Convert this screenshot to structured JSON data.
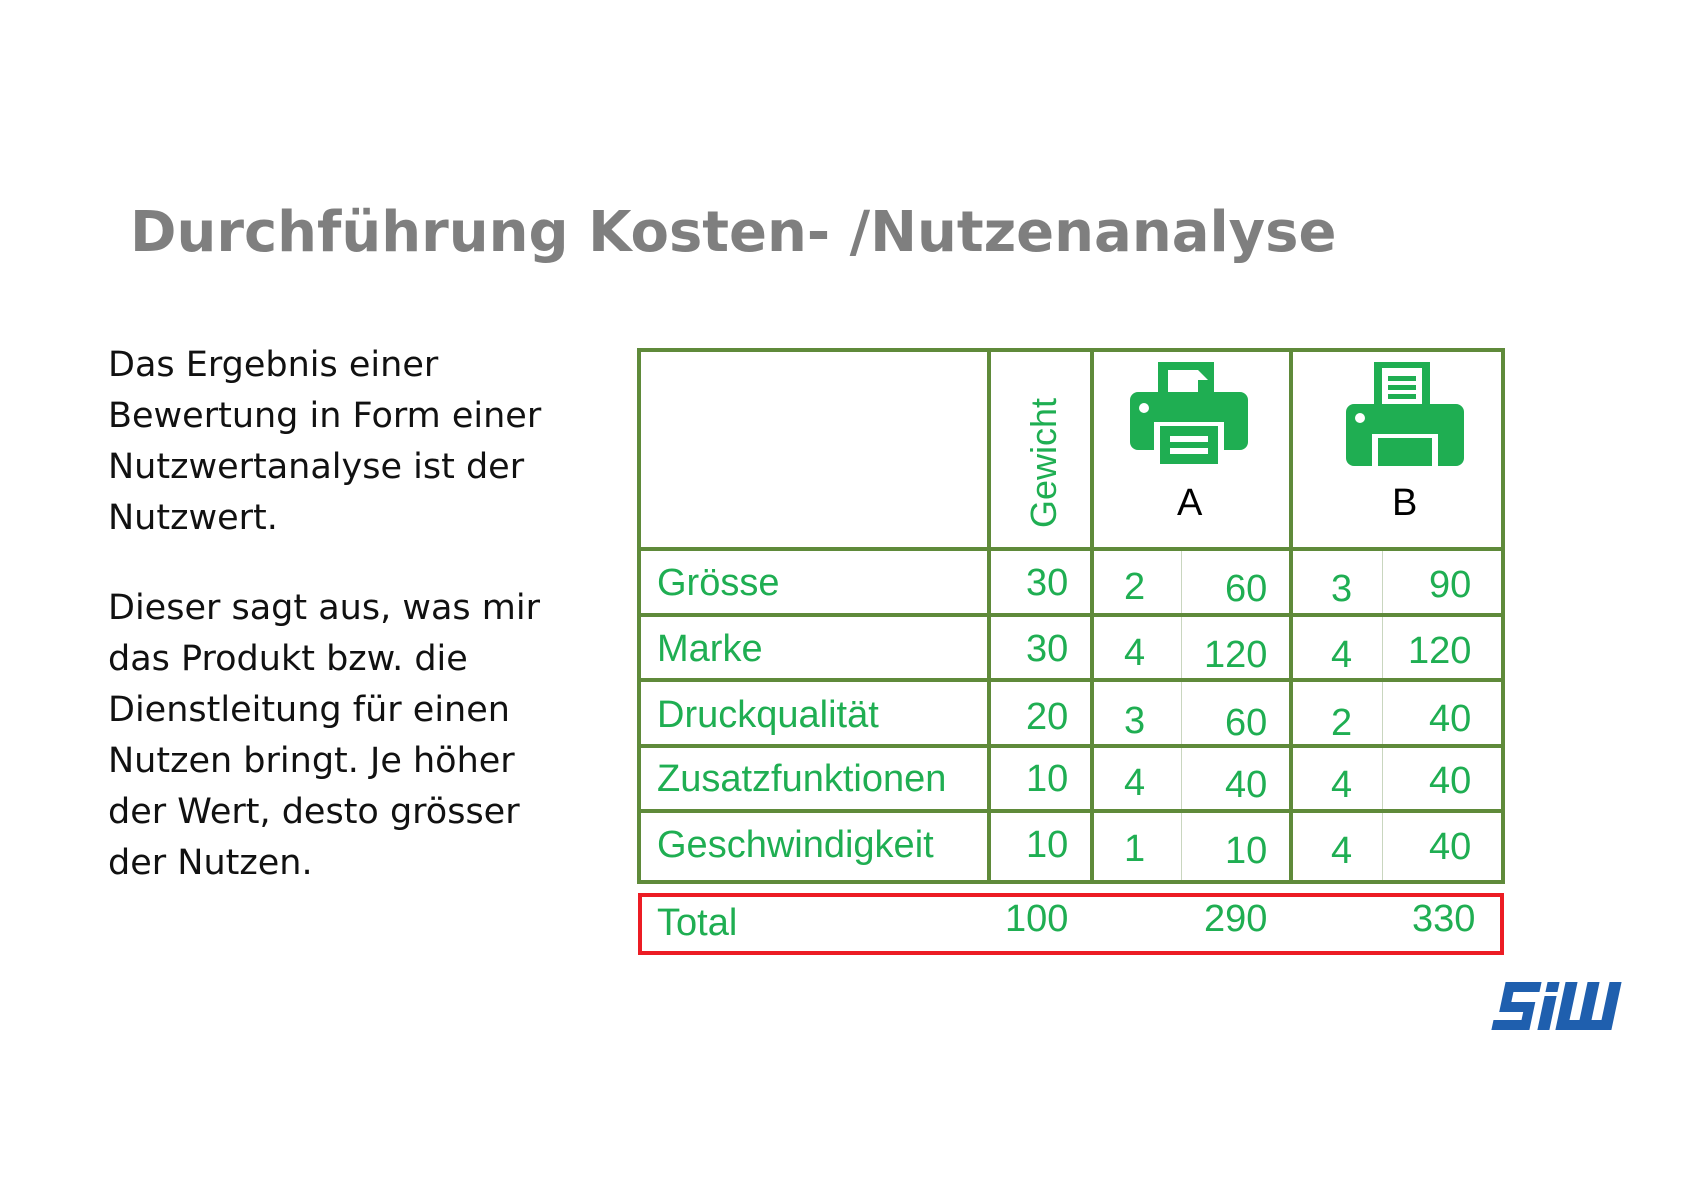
{
  "title": "Durchführung Kosten- /Nutzenanalyse",
  "left_text": {
    "paragraph1": [
      "Das Ergebnis einer",
      "Bewertung in Form einer",
      "Nutzwertanalyse ist der",
      "Nutzwert."
    ],
    "paragraph2": [
      "Dieser sagt aus, was mir",
      "das Produkt bzw. die",
      "Dienstleitung für einen",
      "Nutzen bringt. Je höher",
      "der Wert, desto grösser",
      "der Nutzen."
    ]
  },
  "table": {
    "weight_header": "Gewicht",
    "product_a_label": "A",
    "product_b_label": "B",
    "product_icon": "printer-icon",
    "rows": [
      {
        "criterion": "Grösse",
        "weight": "30",
        "a_score": "2",
        "a_value": "60",
        "b_score": "3",
        "b_value": "90"
      },
      {
        "criterion": "Marke",
        "weight": "30",
        "a_score": "4",
        "a_value": "120",
        "b_score": "4",
        "b_value": "120"
      },
      {
        "criterion": "Druckqualität",
        "weight": "20",
        "a_score": "3",
        "a_value": "60",
        "b_score": "2",
        "b_value": "40"
      },
      {
        "criterion": "Zusatzfunktionen",
        "weight": "10",
        "a_score": "4",
        "a_value": "40",
        "b_score": "4",
        "b_value": "40"
      },
      {
        "criterion": "Geschwindigkeit",
        "weight": "10",
        "a_score": "1",
        "a_value": "10",
        "b_score": "4",
        "b_value": "40"
      }
    ],
    "total": {
      "label": "Total",
      "weight": "100",
      "a_value": "290",
      "b_value": "330"
    }
  },
  "colors": {
    "title": "#7f7f7f",
    "table_text": "#1fae52",
    "grid": "#5f8a3a",
    "total_border": "#ec1c24",
    "printer_icon": "#1fae52",
    "logo": "#1f5fae"
  },
  "logo": {
    "text": "SIW",
    "icon": "siw-logo"
  }
}
